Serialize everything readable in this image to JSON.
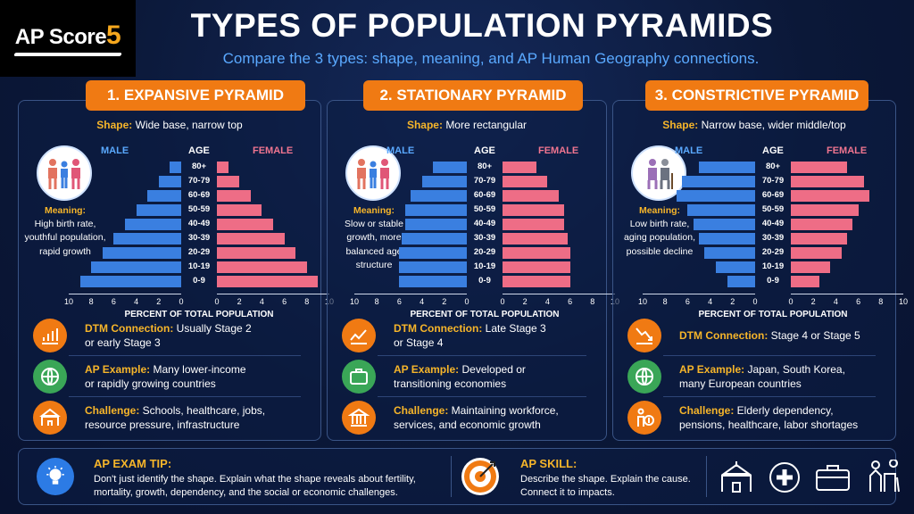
{
  "logo": {
    "text": "AP Score",
    "number": "5"
  },
  "header": {
    "title": "TYPES OF POPULATION PYRAMIDS",
    "subtitle": "Compare the 3 types: shape, meaning, and AP Human Geography connections."
  },
  "labels": {
    "male": "MALE",
    "female": "FEMALE",
    "age": "AGE",
    "axis": "PERCENT OF TOTAL POPULATION",
    "shape_prefix": "Shape:",
    "meaning_prefix": "Meaning:",
    "dtm_prefix": "DTM Connection:",
    "example_prefix": "AP Example:",
    "challenge_prefix": "Challenge:"
  },
  "age_groups": [
    "80+",
    "70-79",
    "60-69",
    "50-59",
    "40-49",
    "30-39",
    "20-29",
    "10-19",
    "0-9"
  ],
  "axis_ticks": [
    "10",
    "8",
    "6",
    "4",
    "2",
    "0",
    "0",
    "2",
    "4",
    "6",
    "8",
    "10"
  ],
  "panels": [
    {
      "title": "1. EXPANSIVE PYRAMID",
      "shape": "Wide base, narrow top",
      "meaning_lines": [
        "High birth rate,",
        "youthful population,",
        "rapid growth"
      ],
      "icon": "family-icon",
      "male": [
        1,
        2,
        3,
        4,
        5,
        6,
        7,
        8,
        9
      ],
      "female": [
        1,
        2,
        3,
        4,
        5,
        6,
        7,
        8,
        9
      ],
      "dtm_lines": [
        "Usually Stage 2",
        "or early Stage 3"
      ],
      "example_lines": [
        "Many lower-income",
        "or rapidly growing countries"
      ],
      "challenge_lines": [
        "Schools, healthcare, jobs,",
        "resource pressure, infrastructure"
      ]
    },
    {
      "title": "2. STATIONARY PYRAMID",
      "shape": "More rectangular",
      "meaning_lines": [
        "Slow or stable",
        "growth, more",
        "balanced age",
        "structure"
      ],
      "icon": "family-icon",
      "male": [
        3,
        4,
        5,
        5.5,
        5.5,
        5.8,
        6,
        6,
        6
      ],
      "female": [
        3,
        4,
        5,
        5.5,
        5.5,
        5.8,
        6,
        6,
        6
      ],
      "dtm_lines": [
        "Late Stage 3",
        "or Stage 4"
      ],
      "example_lines": [
        "Developed or",
        "transitioning economies"
      ],
      "challenge_lines": [
        "Maintaining workforce,",
        "services, and economic growth"
      ]
    },
    {
      "title": "3. CONSTRICTIVE PYRAMID",
      "shape": "Narrow base, wider middle/top",
      "meaning_lines": [
        "Low birth rate,",
        "aging population,",
        "possible decline"
      ],
      "icon": "elderly-couple-icon",
      "male": [
        5,
        6.5,
        7,
        6,
        5.5,
        5,
        4.5,
        3.5,
        2.5
      ],
      "female": [
        5,
        6.5,
        7,
        6,
        5.5,
        5,
        4.5,
        3.5,
        2.5
      ],
      "dtm_lines": [
        "Stage 4 or Stage 5"
      ],
      "example_lines": [
        "Japan, South Korea,",
        "many European countries"
      ],
      "challenge_lines": [
        "Elderly dependency,",
        "pensions, healthcare, labor shortages"
      ]
    }
  ],
  "tip": {
    "title": "AP EXAM TIP:",
    "lines": [
      "Don't just identify the shape. Explain what the shape reveals about fertility,",
      "mortality, growth, dependency, and the social or economic challenges."
    ]
  },
  "skill": {
    "title": "AP SKILL:",
    "lines": [
      "Describe the shape. Explain the cause.",
      "Connect it to impacts."
    ]
  },
  "colors": {
    "accent": "#f07a13",
    "male": "#3a7fe0",
    "female": "#ee6d86",
    "gold": "#f6b52a"
  }
}
